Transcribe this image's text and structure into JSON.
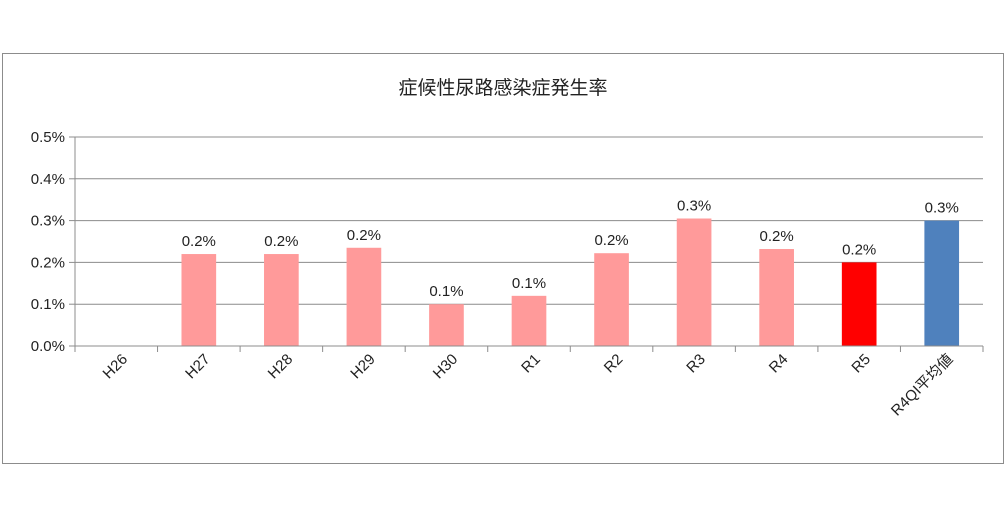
{
  "chart_data": {
    "type": "bar",
    "title": "症候性尿路感染症発生率",
    "xlabel": "",
    "ylabel": "",
    "categories": [
      "H26",
      "H27",
      "H28",
      "H29",
      "H30",
      "R1",
      "R2",
      "R3",
      "R4",
      "R5",
      "R4QI平均値"
    ],
    "values": [
      null,
      0.22,
      0.22,
      0.235,
      0.1,
      0.12,
      0.222,
      0.305,
      0.232,
      0.2,
      0.3
    ],
    "data_labels": [
      "",
      "0.2%",
      "0.2%",
      "0.2%",
      "0.1%",
      "0.1%",
      "0.2%",
      "0.3%",
      "0.2%",
      "0.2%",
      "0.3%"
    ],
    "bar_colors": [
      "#ff9a9a",
      "#ff9a9a",
      "#ff9a9a",
      "#ff9a9a",
      "#ff9a9a",
      "#ff9a9a",
      "#ff9a9a",
      "#ff9a9a",
      "#ff9a9a",
      "#ff0000",
      "#4f81bd"
    ],
    "ylim": [
      0,
      0.5
    ],
    "yticks": [
      0,
      0.1,
      0.2,
      0.3,
      0.4,
      0.5
    ],
    "ytick_labels": [
      "0.0%",
      "0.1%",
      "0.2%",
      "0.3%",
      "0.4%",
      "0.5%"
    ],
    "grid": true,
    "legend": "none",
    "unit": "%"
  }
}
